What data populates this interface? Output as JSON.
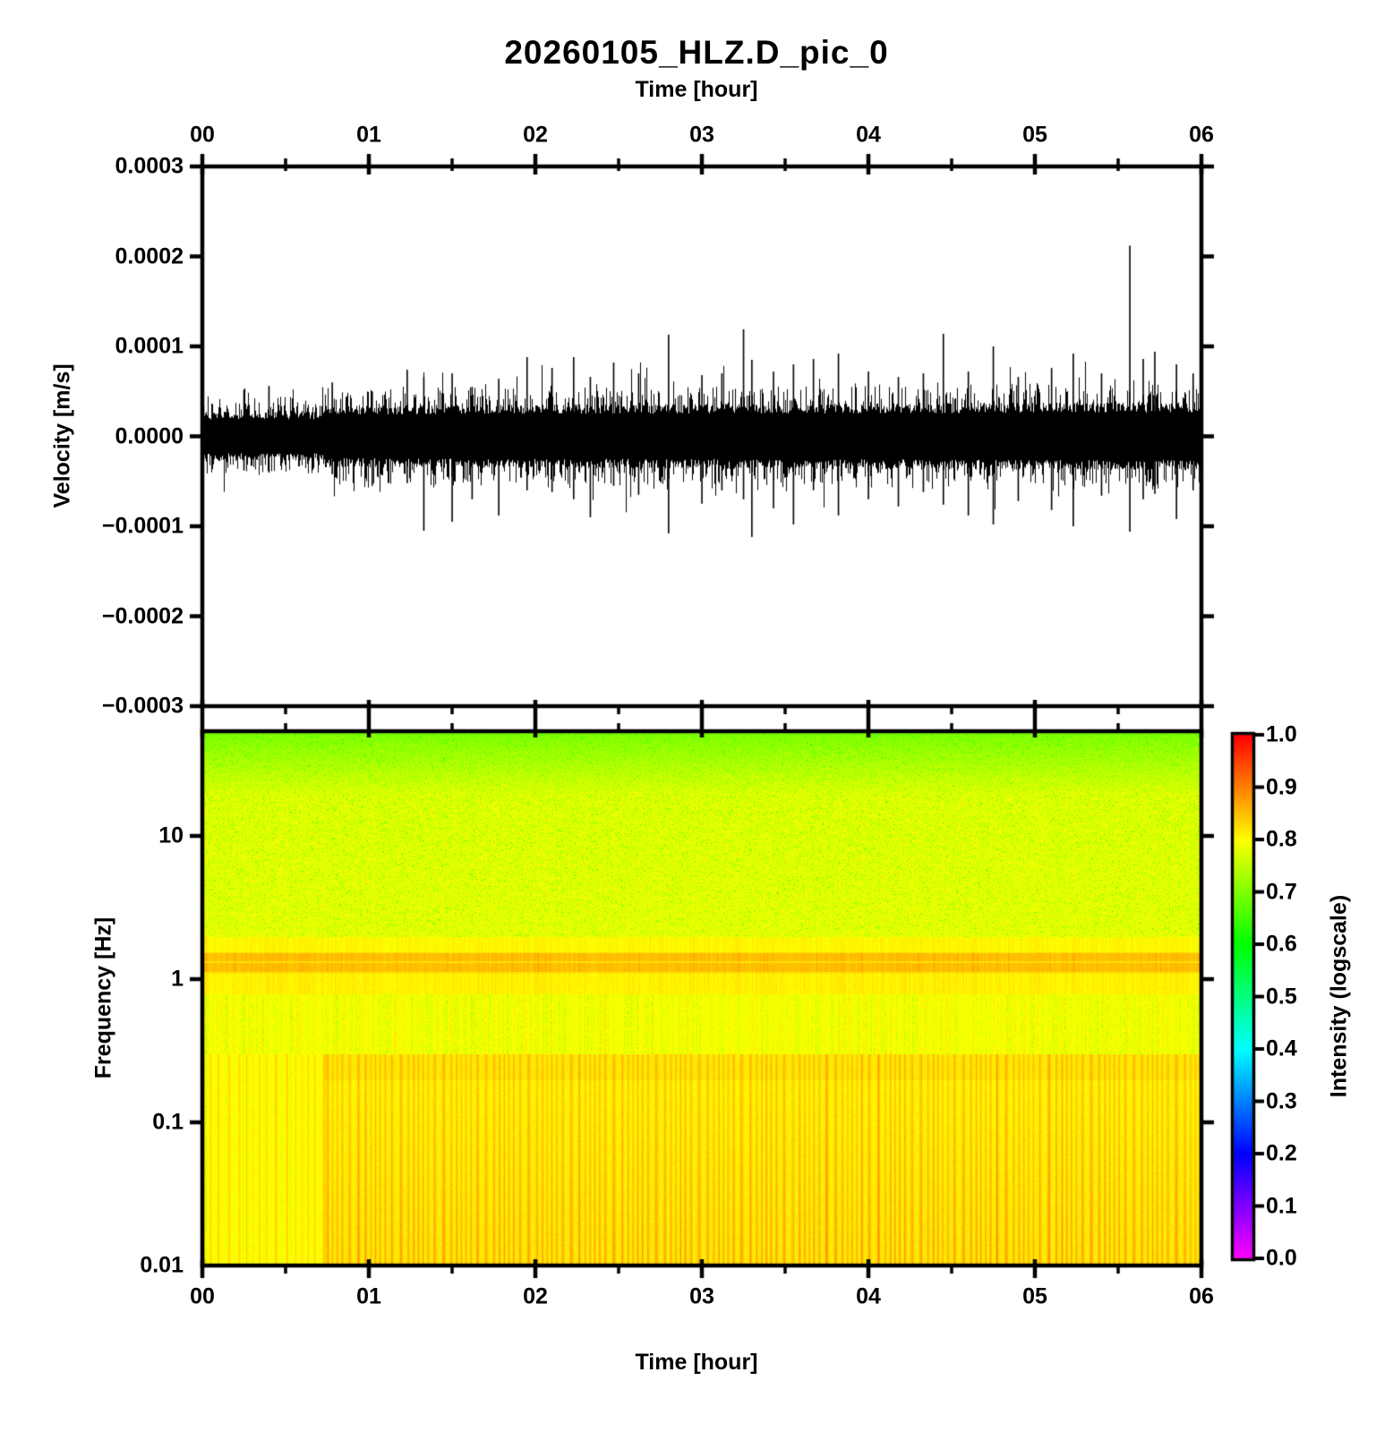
{
  "figure": {
    "title": "20260105_HLZ.D_pic_0",
    "background_color": "#ffffff",
    "text_color": "#000000"
  },
  "chart_data": [
    {
      "type": "line",
      "name": "seismogram-waveform",
      "title": "20260105_HLZ.D_pic_0",
      "xlabel": "Time [hour]",
      "ylabel": "Velocity [m/s]",
      "x_range_hours": [
        0,
        6
      ],
      "x_tick_labels": [
        "00",
        "01",
        "02",
        "03",
        "04",
        "05",
        "06"
      ],
      "x_minor_tick_hours": 0.5,
      "ylim": [
        -0.0003,
        0.0003
      ],
      "y_tick_labels": [
        "0.0003",
        "0.0002",
        "0.0001",
        "0.0000",
        "−0.0001",
        "−0.0002",
        "−0.0003"
      ],
      "line_color": "#000000",
      "noise_band": {
        "core_halfwidth_ms": 2.1e-05,
        "typical_fuzz_ms": 4.2e-05,
        "quiet_until_hour": 0.73,
        "quiet_amplitude_scale": 0.78,
        "loud_growth_scale": 0.1
      },
      "max_spike": {
        "t_hour": 5.57,
        "up_ms": 0.000212
      },
      "spikes": [
        {
          "t_hour": 0.25,
          "up_ms": 5.2e-05,
          "down_ms": 3.8e-05
        },
        {
          "t_hour": 0.4,
          "up_ms": 5.6e-05,
          "down_ms": 4e-05
        },
        {
          "t_hour": 0.78,
          "up_ms": 6e-05,
          "down_ms": 4.2e-05
        },
        {
          "t_hour": 1.02,
          "up_ms": 5e-05,
          "down_ms": 5.5e-05
        },
        {
          "t_hour": 1.23,
          "up_ms": 7.4e-05,
          "down_ms": 5.2e-05
        },
        {
          "t_hour": 1.33,
          "up_ms": 6.6e-05,
          "down_ms": 0.000105
        },
        {
          "t_hour": 1.5,
          "up_ms": 7e-05,
          "down_ms": 9.5e-05
        },
        {
          "t_hour": 1.62,
          "up_ms": 5.5e-05,
          "down_ms": 7e-05
        },
        {
          "t_hour": 1.78,
          "up_ms": 6.4e-05,
          "down_ms": 8.8e-05
        },
        {
          "t_hour": 1.95,
          "up_ms": 8.8e-05,
          "down_ms": 6e-05
        },
        {
          "t_hour": 2.1,
          "up_ms": 7.6e-05,
          "down_ms": 6.2e-05
        },
        {
          "t_hour": 2.23,
          "up_ms": 8.8e-05,
          "down_ms": 7e-05
        },
        {
          "t_hour": 2.33,
          "up_ms": 6.6e-05,
          "down_ms": 9e-05
        },
        {
          "t_hour": 2.47,
          "up_ms": 8.2e-05,
          "down_ms": 5.5e-05
        },
        {
          "t_hour": 2.62,
          "up_ms": 7e-05,
          "down_ms": 6.5e-05
        },
        {
          "t_hour": 2.8,
          "up_ms": 0.000113,
          "down_ms": 0.000108
        },
        {
          "t_hour": 3.0,
          "up_ms": 6.8e-05,
          "down_ms": 7.5e-05
        },
        {
          "t_hour": 3.12,
          "up_ms": 7e-05,
          "down_ms": 6e-05
        },
        {
          "t_hour": 3.25,
          "up_ms": 0.000119,
          "down_ms": 7e-05
        },
        {
          "t_hour": 3.3,
          "up_ms": 8.5e-05,
          "down_ms": 0.000112
        },
        {
          "t_hour": 3.43,
          "up_ms": 7.2e-05,
          "down_ms": 8e-05
        },
        {
          "t_hour": 3.55,
          "up_ms": 8e-05,
          "down_ms": 9.8e-05
        },
        {
          "t_hour": 3.67,
          "up_ms": 8.6e-05,
          "down_ms": 6e-05
        },
        {
          "t_hour": 3.82,
          "up_ms": 9.2e-05,
          "down_ms": 8.8e-05
        },
        {
          "t_hour": 4.0,
          "up_ms": 7.2e-05,
          "down_ms": 7e-05
        },
        {
          "t_hour": 4.18,
          "up_ms": 6.6e-05,
          "down_ms": 7.8e-05
        },
        {
          "t_hour": 4.33,
          "up_ms": 7e-05,
          "down_ms": 6.2e-05
        },
        {
          "t_hour": 4.45,
          "up_ms": 0.000114,
          "down_ms": 7.6e-05
        },
        {
          "t_hour": 4.6,
          "up_ms": 7.2e-05,
          "down_ms": 8.8e-05
        },
        {
          "t_hour": 4.75,
          "up_ms": 0.0001,
          "down_ms": 9.8e-05
        },
        {
          "t_hour": 4.9,
          "up_ms": 6.6e-05,
          "down_ms": 7.2e-05
        },
        {
          "t_hour": 5.1,
          "up_ms": 7.6e-05,
          "down_ms": 8.2e-05
        },
        {
          "t_hour": 5.23,
          "up_ms": 9.2e-05,
          "down_ms": 0.0001
        },
        {
          "t_hour": 5.4,
          "up_ms": 7e-05,
          "down_ms": 6.6e-05
        },
        {
          "t_hour": 5.57,
          "up_ms": 0.000212,
          "down_ms": 0.000106
        },
        {
          "t_hour": 5.65,
          "up_ms": 8.6e-05,
          "down_ms": 7e-05
        },
        {
          "t_hour": 5.72,
          "up_ms": 9.4e-05,
          "down_ms": 6.4e-05
        },
        {
          "t_hour": 5.85,
          "up_ms": 8e-05,
          "down_ms": 9.2e-05
        },
        {
          "t_hour": 5.95,
          "up_ms": 7e-05,
          "down_ms": 6e-05
        }
      ]
    },
    {
      "type": "heatmap",
      "name": "spectrogram",
      "xlabel": "Time [hour]",
      "ylabel": "Frequency [Hz]",
      "x_range_hours": [
        0,
        6
      ],
      "x_tick_labels": [
        "00",
        "01",
        "02",
        "03",
        "04",
        "05",
        "06"
      ],
      "x_minor_tick_hours": 0.5,
      "y_scale": "log",
      "freq_range_hz": [
        0.01,
        54
      ],
      "y_tick_labels": [
        "10",
        "1",
        "0.1",
        "0.01"
      ],
      "y_tick_values_hz": [
        10,
        1,
        0.1,
        0.01
      ],
      "intensity_features": {
        "high_freq_green_above_hz": 20,
        "top_edge_intensity": 0.705,
        "background_intensity": 0.78,
        "speckle_band_hz": [
          2,
          20
        ],
        "microseism_band_hz": [
          1.1,
          1.6
        ],
        "microseism_band_intensity": 0.85,
        "streak_band_hz": [
          0.3,
          0.8
        ],
        "striped_zone_below_hz": 0.3,
        "quiet_segment_until_hour": 0.73,
        "quiet_zone_intensity": 0.8,
        "loud_stripe_peak_intensity": 0.88
      },
      "colorbar": {
        "label": "Intensity (logscale)",
        "range": [
          0.0,
          1.0
        ],
        "tick_labels": [
          "1.0",
          "0.9",
          "0.8",
          "0.7",
          "0.6",
          "0.5",
          "0.4",
          "0.3",
          "0.2",
          "0.1",
          "0.0"
        ],
        "colormap_stops": {
          "0.0": "#ff00ff",
          "0.2": "#0000ff",
          "0.4": "#00ffff",
          "0.6": "#00ff00",
          "0.8": "#ffff00",
          "0.9": "#ff8000",
          "1.0": "#ff0000"
        }
      }
    }
  ]
}
